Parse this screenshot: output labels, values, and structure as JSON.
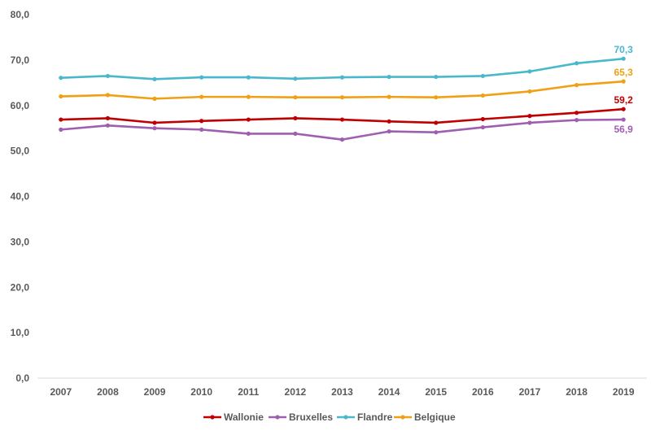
{
  "chart_data": {
    "type": "line",
    "title": "",
    "xlabel": "",
    "ylabel": "",
    "x": [
      "2007",
      "2008",
      "2009",
      "2010",
      "2011",
      "2012",
      "2013",
      "2014",
      "2015",
      "2016",
      "2017",
      "2018",
      "2019"
    ],
    "ylim": [
      0,
      80
    ],
    "yticks": [
      "0,0",
      "10,0",
      "20,0",
      "30,0",
      "40,0",
      "50,0",
      "60,0",
      "70,0",
      "80,0"
    ],
    "grid": false,
    "legend_position": "bottom",
    "series": [
      {
        "name": "Wallonie",
        "color": "#c00000",
        "values": [
          56.9,
          57.2,
          56.2,
          56.6,
          56.9,
          57.2,
          56.9,
          56.5,
          56.2,
          57.0,
          57.7,
          58.4,
          59.2
        ],
        "end_label": "59,2"
      },
      {
        "name": "Bruxelles",
        "color": "#9e5fb1",
        "values": [
          54.7,
          55.6,
          55.0,
          54.7,
          53.8,
          53.8,
          52.5,
          54.3,
          54.1,
          55.2,
          56.2,
          56.8,
          56.9
        ],
        "end_label": "56,9"
      },
      {
        "name": "Flandre",
        "color": "#4ab8cc",
        "values": [
          66.1,
          66.5,
          65.8,
          66.2,
          66.2,
          65.9,
          66.2,
          66.3,
          66.3,
          66.5,
          67.5,
          69.3,
          70.3
        ],
        "end_label": "70,3"
      },
      {
        "name": "Belgique",
        "color": "#f0a014",
        "values": [
          62.0,
          62.3,
          61.5,
          61.9,
          61.9,
          61.8,
          61.8,
          61.9,
          61.8,
          62.2,
          63.1,
          64.5,
          65.3
        ],
        "end_label": "65,3"
      }
    ]
  }
}
